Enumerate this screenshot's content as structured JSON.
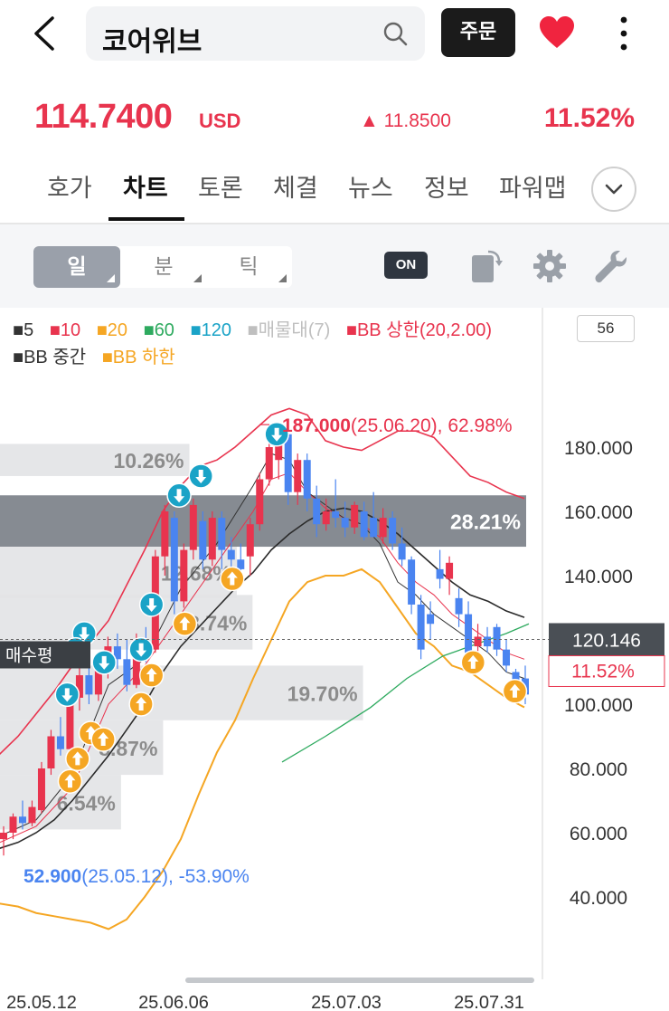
{
  "header": {
    "search_text": "코어위브",
    "order_label": "주문"
  },
  "price": {
    "current": "114.7400",
    "unit": "USD",
    "change_abs": "▲ 11.8500",
    "change_pct": "11.52%"
  },
  "tabs": [
    {
      "label": "호가"
    },
    {
      "label": "차트",
      "active": true
    },
    {
      "label": "토론"
    },
    {
      "label": "체결"
    },
    {
      "label": "뉴스"
    },
    {
      "label": "정보"
    },
    {
      "label": "파워맵"
    }
  ],
  "toolbar": {
    "periods": [
      "일",
      "분",
      "틱"
    ],
    "active_period": "일",
    "toggle_label": "ON"
  },
  "legend": {
    "items": [
      {
        "marker": "■",
        "label": "5",
        "color": "#333333"
      },
      {
        "marker": "■",
        "label": "10",
        "color": "#e8344e"
      },
      {
        "marker": "■",
        "label": "20",
        "color": "#f5a623"
      },
      {
        "marker": "■",
        "label": "60",
        "color": "#2eaa5f"
      },
      {
        "marker": "■",
        "label": "120",
        "color": "#1aa3c7"
      },
      {
        "marker": "■",
        "label": "매물대(7)",
        "color": "#bfbfbf"
      },
      {
        "marker": "■",
        "label": "BB 상한(20,2.00)",
        "color": "#e8344e"
      },
      {
        "marker": "■",
        "label": "BB 중간",
        "color": "#333333"
      },
      {
        "marker": "■",
        "label": "BB 하한",
        "color": "#f5a623"
      }
    ],
    "visible_count": "56"
  },
  "chart_data": {
    "type": "candlestick",
    "colors": {
      "up": "#e8344e",
      "down": "#4a84f0"
    },
    "y_ticks": [
      "180.000",
      "160.000",
      "140.000",
      "120.000",
      "100.000",
      "80.000",
      "60.000",
      "40.000"
    ],
    "ylim": [
      28,
      200
    ],
    "x_ticks": [
      "25.05.12",
      "25.06.06",
      "25.07.03",
      "25.07.31"
    ],
    "high_label": {
      "value": "187.000",
      "detail": "(25.06.20), 62.98%"
    },
    "low_label": {
      "value": "52.900",
      "detail": "(25.05.12), -53.90%"
    },
    "current_price_tag": "120.146",
    "current_pct_tag": "11.52%",
    "avg_buy_label": "매수평",
    "volume_profile": [
      {
        "pct": "10.26%",
        "from": 171,
        "to": 181,
        "ratio": 0.36,
        "highlight": false
      },
      {
        "pct": "28.21%",
        "from": 149,
        "to": 165,
        "ratio": 1.0,
        "highlight": true
      },
      {
        "pct": "12.68%",
        "from": 133,
        "to": 149,
        "ratio": 0.45,
        "highlight": false
      },
      {
        "pct": "13.74%",
        "from": 117,
        "to": 134,
        "ratio": 0.48,
        "highlight": false
      },
      {
        "pct": "19.70%",
        "from": 95,
        "to": 112,
        "ratio": 0.69,
        "highlight": false
      },
      {
        "pct": "8.87%",
        "from": 78,
        "to": 95,
        "ratio": 0.31,
        "highlight": false
      },
      {
        "pct": "6.54%",
        "from": 61,
        "to": 78,
        "ratio": 0.23,
        "highlight": false
      }
    ],
    "candles": [
      {
        "o": 58,
        "h": 62,
        "l": 52.9,
        "c": 60
      },
      {
        "o": 60,
        "h": 66,
        "l": 58,
        "c": 65
      },
      {
        "o": 65,
        "h": 70,
        "l": 61,
        "c": 63
      },
      {
        "o": 63,
        "h": 70,
        "l": 62,
        "c": 68
      },
      {
        "o": 67,
        "h": 82,
        "l": 66,
        "c": 80
      },
      {
        "o": 80,
        "h": 92,
        "l": 78,
        "c": 90
      },
      {
        "o": 90,
        "h": 96,
        "l": 84,
        "c": 86
      },
      {
        "o": 86,
        "h": 104,
        "l": 85,
        "c": 102
      },
      {
        "o": 102,
        "h": 112,
        "l": 98,
        "c": 109
      },
      {
        "o": 109,
        "h": 112,
        "l": 100,
        "c": 103
      },
      {
        "o": 103,
        "h": 116,
        "l": 101,
        "c": 114
      },
      {
        "o": 114,
        "h": 121,
        "l": 108,
        "c": 118
      },
      {
        "o": 118,
        "h": 122,
        "l": 111,
        "c": 114
      },
      {
        "o": 114,
        "h": 120,
        "l": 104,
        "c": 106
      },
      {
        "o": 106,
        "h": 122,
        "l": 105,
        "c": 120
      },
      {
        "o": 120,
        "h": 124,
        "l": 113,
        "c": 117
      },
      {
        "o": 117,
        "h": 148,
        "l": 116,
        "c": 146
      },
      {
        "o": 146,
        "h": 162,
        "l": 140,
        "c": 160
      },
      {
        "o": 158,
        "h": 160,
        "l": 128,
        "c": 132
      },
      {
        "o": 132,
        "h": 150,
        "l": 130,
        "c": 148
      },
      {
        "o": 148,
        "h": 164,
        "l": 145,
        "c": 162
      },
      {
        "o": 157,
        "h": 160,
        "l": 142,
        "c": 145
      },
      {
        "o": 145,
        "h": 160,
        "l": 143,
        "c": 158
      },
      {
        "o": 158,
        "h": 160,
        "l": 142,
        "c": 148
      },
      {
        "o": 148,
        "h": 152,
        "l": 140,
        "c": 145
      },
      {
        "o": 145,
        "h": 150,
        "l": 139,
        "c": 142
      },
      {
        "o": 146,
        "h": 158,
        "l": 140,
        "c": 156
      },
      {
        "o": 156,
        "h": 172,
        "l": 154,
        "c": 170
      },
      {
        "o": 170,
        "h": 182,
        "l": 168,
        "c": 180
      },
      {
        "o": 176,
        "h": 187,
        "l": 170,
        "c": 184
      },
      {
        "o": 184,
        "h": 185,
        "l": 162,
        "c": 166
      },
      {
        "o": 166,
        "h": 178,
        "l": 162,
        "c": 176
      },
      {
        "o": 176,
        "h": 178,
        "l": 160,
        "c": 164
      },
      {
        "o": 164,
        "h": 168,
        "l": 152,
        "c": 156
      },
      {
        "o": 156,
        "h": 164,
        "l": 154,
        "c": 160
      },
      {
        "o": 160,
        "h": 170,
        "l": 155,
        "c": 158
      },
      {
        "o": 158,
        "h": 163,
        "l": 152,
        "c": 155
      },
      {
        "o": 155,
        "h": 163,
        "l": 153,
        "c": 162
      },
      {
        "o": 160,
        "h": 163,
        "l": 151,
        "c": 152
      },
      {
        "o": 158,
        "h": 166,
        "l": 152,
        "c": 152
      },
      {
        "o": 152,
        "h": 161,
        "l": 150,
        "c": 158
      },
      {
        "o": 158,
        "h": 160,
        "l": 148,
        "c": 150
      },
      {
        "o": 150,
        "h": 155,
        "l": 143,
        "c": 145
      },
      {
        "o": 145,
        "h": 146,
        "l": 128,
        "c": 131
      },
      {
        "o": 131,
        "h": 134,
        "l": 114,
        "c": 117
      },
      {
        "o": 128,
        "h": 132,
        "l": 120,
        "c": 125
      },
      {
        "o": 142,
        "h": 148,
        "l": 136,
        "c": 139
      },
      {
        "o": 139,
        "h": 146,
        "l": 134,
        "c": 144
      },
      {
        "o": 133,
        "h": 136,
        "l": 124,
        "c": 128
      },
      {
        "o": 128,
        "h": 132,
        "l": 114,
        "c": 116
      },
      {
        "o": 118,
        "h": 125,
        "l": 115,
        "c": 121
      },
      {
        "o": 121,
        "h": 124,
        "l": 116,
        "c": 118
      },
      {
        "o": 124,
        "h": 125,
        "l": 115,
        "c": 117
      },
      {
        "o": 117,
        "h": 120,
        "l": 110,
        "c": 112
      },
      {
        "o": 110,
        "h": 111,
        "l": 102,
        "c": 104
      },
      {
        "o": 108,
        "h": 112,
        "l": 100,
        "c": 103
      }
    ],
    "bb_upper": [
      [
        -2,
        84
      ],
      [
        20,
        90
      ],
      [
        40,
        97
      ],
      [
        60,
        104
      ],
      [
        80,
        112
      ],
      [
        100,
        119
      ],
      [
        120,
        126
      ],
      [
        140,
        137
      ],
      [
        160,
        148
      ],
      [
        180,
        160
      ],
      [
        200,
        168
      ],
      [
        220,
        174
      ],
      [
        240,
        176
      ],
      [
        260,
        180
      ],
      [
        280,
        185
      ],
      [
        300,
        190
      ],
      [
        320,
        192
      ],
      [
        340,
        190
      ],
      [
        360,
        182
      ],
      [
        380,
        180
      ],
      [
        400,
        179
      ],
      [
        420,
        182
      ],
      [
        440,
        185
      ],
      [
        460,
        185
      ],
      [
        480,
        183
      ],
      [
        500,
        177
      ],
      [
        520,
        171
      ],
      [
        540,
        169
      ],
      [
        560,
        166
      ],
      [
        580,
        164
      ]
    ],
    "bb_mid": [
      [
        -2,
        55
      ],
      [
        20,
        57
      ],
      [
        40,
        60
      ],
      [
        60,
        64
      ],
      [
        80,
        70
      ],
      [
        100,
        77
      ],
      [
        120,
        84
      ],
      [
        140,
        92
      ],
      [
        160,
        100
      ],
      [
        180,
        110
      ],
      [
        200,
        118
      ],
      [
        220,
        124
      ],
      [
        240,
        130
      ],
      [
        260,
        136
      ],
      [
        280,
        141
      ],
      [
        300,
        148
      ],
      [
        320,
        153
      ],
      [
        340,
        157
      ],
      [
        360,
        160
      ],
      [
        380,
        161
      ],
      [
        400,
        160
      ],
      [
        420,
        157
      ],
      [
        440,
        153
      ],
      [
        460,
        148
      ],
      [
        480,
        143
      ],
      [
        500,
        138
      ],
      [
        520,
        134
      ],
      [
        540,
        132
      ],
      [
        560,
        129
      ],
      [
        580,
        127
      ]
    ],
    "bb_lower": [
      [
        -2,
        38
      ],
      [
        20,
        37
      ],
      [
        40,
        35
      ],
      [
        60,
        34
      ],
      [
        80,
        33
      ],
      [
        100,
        32
      ],
      [
        120,
        30
      ],
      [
        140,
        33
      ],
      [
        160,
        40
      ],
      [
        180,
        48
      ],
      [
        200,
        58
      ],
      [
        220,
        72
      ],
      [
        240,
        85
      ],
      [
        260,
        95
      ],
      [
        280,
        108
      ],
      [
        300,
        120
      ],
      [
        320,
        132
      ],
      [
        340,
        138
      ],
      [
        360,
        140
      ],
      [
        380,
        140
      ],
      [
        400,
        142
      ],
      [
        420,
        138
      ],
      [
        440,
        130
      ],
      [
        460,
        122
      ],
      [
        480,
        118
      ],
      [
        500,
        112
      ],
      [
        520,
        110
      ],
      [
        540,
        106
      ],
      [
        560,
        102
      ],
      [
        580,
        99
      ]
    ],
    "ma5": [
      [
        0,
        59
      ],
      [
        40,
        64
      ],
      [
        80,
        78
      ],
      [
        120,
        106
      ],
      [
        160,
        114
      ],
      [
        200,
        136
      ],
      [
        240,
        150
      ],
      [
        280,
        168
      ],
      [
        300,
        178
      ],
      [
        320,
        176
      ],
      [
        340,
        166
      ],
      [
        360,
        162
      ],
      [
        380,
        158
      ],
      [
        400,
        156
      ],
      [
        420,
        150
      ],
      [
        440,
        138
      ],
      [
        460,
        134
      ],
      [
        480,
        128
      ],
      [
        500,
        124
      ],
      [
        520,
        120
      ],
      [
        540,
        116
      ],
      [
        560,
        110
      ],
      [
        580,
        108
      ]
    ],
    "ma10": [
      [
        0,
        57
      ],
      [
        40,
        62
      ],
      [
        80,
        74
      ],
      [
        120,
        100
      ],
      [
        160,
        112
      ],
      [
        200,
        128
      ],
      [
        240,
        144
      ],
      [
        280,
        160
      ],
      [
        300,
        170
      ],
      [
        320,
        172
      ],
      [
        340,
        166
      ],
      [
        360,
        161
      ],
      [
        380,
        158
      ],
      [
        400,
        156
      ],
      [
        420,
        152
      ],
      [
        440,
        144
      ],
      [
        460,
        138
      ],
      [
        480,
        134
      ],
      [
        500,
        128
      ],
      [
        520,
        124
      ],
      [
        540,
        120
      ],
      [
        560,
        116
      ],
      [
        580,
        114
      ]
    ],
    "ma60": [
      [
        312,
        82
      ],
      [
        360,
        90
      ],
      [
        410,
        99
      ],
      [
        450,
        108
      ],
      [
        490,
        115
      ],
      [
        530,
        119
      ],
      [
        560,
        122
      ],
      [
        585,
        125
      ]
    ],
    "signals": [
      {
        "dir": "down",
        "i": 28.8,
        "v": 184
      },
      {
        "dir": "down",
        "i": 20.8,
        "v": 171
      },
      {
        "dir": "down",
        "i": 18.5,
        "v": 165
      },
      {
        "dir": "down",
        "i": 15.6,
        "v": 131
      },
      {
        "dir": "down",
        "i": 14.5,
        "v": 117
      },
      {
        "dir": "down",
        "i": 8.5,
        "v": 122
      },
      {
        "dir": "down",
        "i": 7.6,
        "v": 117
      },
      {
        "dir": "down",
        "i": 10.6,
        "v": 113
      },
      {
        "dir": "down",
        "i": 6.7,
        "v": 103
      },
      {
        "dir": "up",
        "i": 24.1,
        "v": 139
      },
      {
        "dir": "up",
        "i": 19.1,
        "v": 125
      },
      {
        "dir": "up",
        "i": 15.6,
        "v": 109
      },
      {
        "dir": "up",
        "i": 14.5,
        "v": 100
      },
      {
        "dir": "up",
        "i": 9.2,
        "v": 91
      },
      {
        "dir": "up",
        "i": 10.5,
        "v": 89
      },
      {
        "dir": "up",
        "i": 7.8,
        "v": 83
      },
      {
        "dir": "up",
        "i": 7.0,
        "v": 76
      },
      {
        "dir": "up",
        "i": 49.5,
        "v": 113
      },
      {
        "dir": "up",
        "i": 53.9,
        "v": 104
      }
    ]
  }
}
